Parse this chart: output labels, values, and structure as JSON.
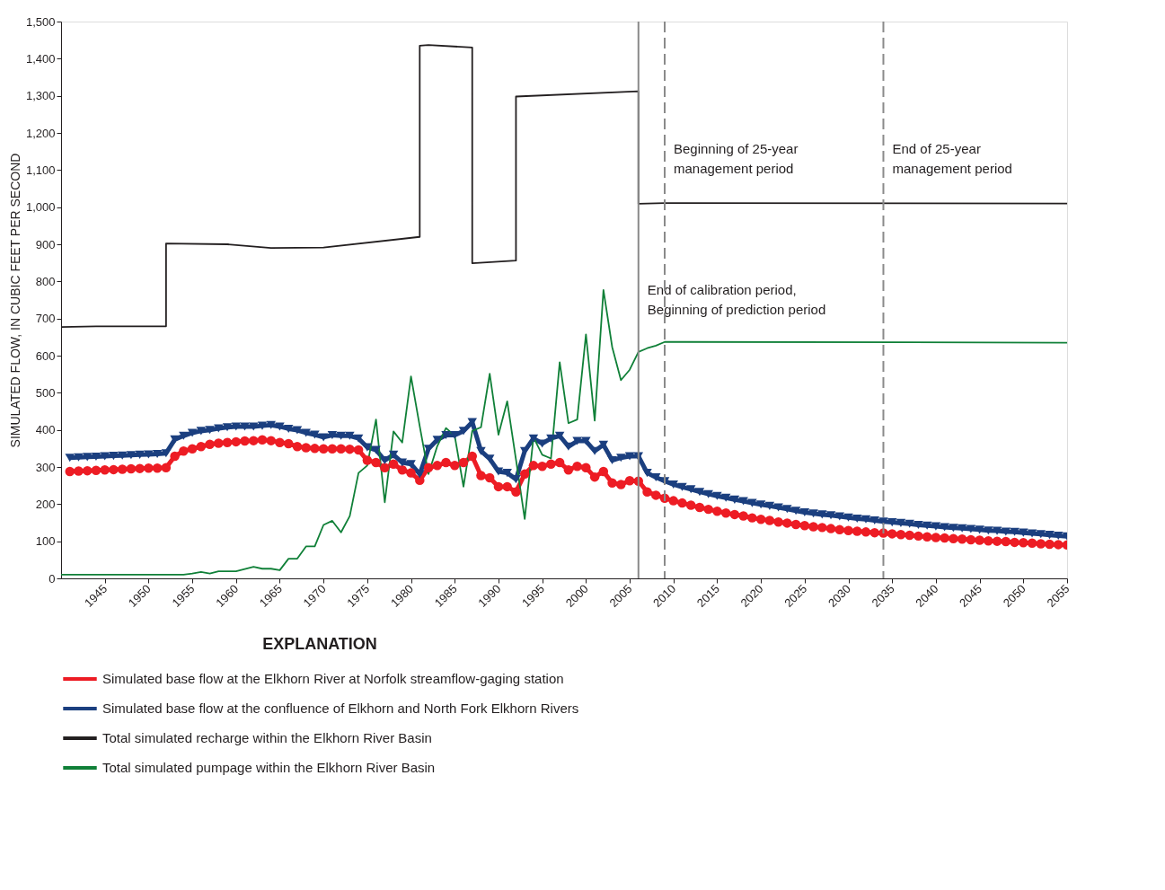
{
  "chart_data": {
    "type": "line",
    "ylabel": "SIMULATED FLOW, IN CUBIC FEET PER SECOND",
    "legend_title": "EXPLANATION",
    "legend": "bottom",
    "xlim": [
      1940,
      2055
    ],
    "xticks": [
      1945,
      1950,
      1955,
      1960,
      1965,
      1970,
      1975,
      1980,
      1985,
      1990,
      1995,
      2000,
      2005,
      2010,
      2015,
      2020,
      2025,
      2030,
      2035,
      2040,
      2045,
      2050,
      2055
    ],
    "ylim": [
      0,
      1500
    ],
    "yticks": [
      0,
      100,
      200,
      300,
      400,
      500,
      600,
      700,
      800,
      900,
      {
        "value": 1000,
        "label": "1,000"
      },
      {
        "value": 1100,
        "label": "1,100"
      },
      {
        "value": 1200,
        "label": "1,200"
      },
      {
        "value": 1300,
        "label": "1,300"
      },
      {
        "value": 1400,
        "label": "1,400"
      },
      {
        "value": 1500,
        "label": "1,500"
      }
    ],
    "x": [
      1941,
      1942,
      1943,
      1944,
      1945,
      1946,
      1947,
      1948,
      1949,
      1950,
      1951,
      1952,
      1953,
      1954,
      1955,
      1956,
      1957,
      1958,
      1959,
      1960,
      1961,
      1962,
      1963,
      1964,
      1965,
      1966,
      1967,
      1968,
      1969,
      1970,
      1971,
      1972,
      1973,
      1974,
      1975,
      1976,
      1977,
      1978,
      1979,
      1980,
      1981,
      1982,
      1983,
      1984,
      1985,
      1986,
      1987,
      1988,
      1989,
      1990,
      1991,
      1992,
      1993,
      1994,
      1995,
      1996,
      1997,
      1998,
      1999,
      2000,
      2001,
      2002,
      2003,
      2004,
      2005,
      2006,
      2007,
      2008,
      2009,
      2010,
      2011,
      2012,
      2013,
      2014,
      2015,
      2016,
      2017,
      2018,
      2019,
      2020,
      2021,
      2022,
      2023,
      2024,
      2025,
      2026,
      2027,
      2028,
      2029,
      2030,
      2031,
      2032,
      2033,
      2034,
      2035,
      2036,
      2037,
      2038,
      2039,
      2040,
      2041,
      2042,
      2043,
      2044,
      2045,
      2046,
      2047,
      2048,
      2049,
      2050,
      2051,
      2052,
      2053,
      2054,
      2055
    ],
    "series": [
      {
        "name": "Simulated base flow at the Elkhorn River at Norfolk streamflow-gaging station",
        "color": "#ed1c24",
        "marker": "circle",
        "values": [
          288,
          289,
          290,
          291,
          292,
          293,
          294,
          295,
          296,
          297,
          297,
          298,
          329,
          343,
          349,
          355,
          361,
          364,
          366,
          368,
          370,
          371,
          373,
          371,
          366,
          363,
          355,
          352,
          350,
          349,
          349,
          349,
          348,
          346,
          318,
          312,
          298,
          308,
          292,
          284,
          264,
          298,
          304,
          312,
          304,
          312,
          329,
          277,
          271,
          247,
          247,
          233,
          281,
          304,
          302,
          308,
          312,
          292,
          302,
          298,
          273,
          288,
          257,
          253,
          263,
          262,
          233,
          224,
          216,
          209,
          203,
          197,
          191,
          186,
          181,
          176,
          172,
          168,
          163,
          159,
          156,
          152,
          149,
          145,
          142,
          139,
          137,
          134,
          131,
          129,
          127,
          125,
          123,
          122,
          120,
          118,
          116,
          114,
          112,
          110,
          109,
          107,
          106,
          104,
          103,
          101,
          100,
          99,
          97,
          96,
          95,
          93,
          92,
          91,
          90
        ]
      },
      {
        "name": "Simulated base flow at the confluence of Elkhorn and North Fork Elkhorn Rivers",
        "color": "#1b3f7f",
        "marker": "triangle",
        "values": [
          325,
          326,
          327,
          328,
          329,
          330,
          331,
          332,
          333,
          334,
          335,
          337,
          374,
          384,
          392,
          397,
          400,
          404,
          407,
          409,
          409,
          409,
          411,
          413,
          409,
          403,
          399,
          392,
          387,
          380,
          386,
          384,
          384,
          377,
          353,
          346,
          318,
          333,
          312,
          308,
          281,
          349,
          373,
          386,
          386,
          397,
          421,
          343,
          322,
          288,
          284,
          267,
          343,
          377,
          363,
          377,
          384,
          355,
          370,
          370,
          343,
          360,
          318,
          325,
          329,
          329,
          284,
          272,
          262,
          253,
          246,
          240,
          233,
          227,
          222,
          217,
          212,
          208,
          203,
          199,
          195,
          191,
          187,
          182,
          178,
          175,
          172,
          170,
          167,
          164,
          161,
          159,
          156,
          153,
          151,
          149,
          147,
          144,
          142,
          140,
          138,
          136,
          135,
          133,
          131,
          129,
          128,
          126,
          125,
          123,
          121,
          119,
          117,
          115,
          113
        ]
      },
      {
        "name": "Total simulated recharge within the Elkhorn River Basin",
        "color": "#231f20",
        "marker": "none",
        "x": [
          1940,
          1944,
          1952,
          1952,
          1959,
          1964,
          1970,
          1981,
          1981,
          1982,
          1987,
          1987,
          1992,
          1992,
          2006,
          2006,
          2009,
          2055
        ],
        "values": [
          677,
          679,
          679,
          902,
          900,
          890,
          891,
          920,
          1435,
          1437,
          1430,
          849,
          856,
          1298,
          1312,
          1009,
          1011,
          1010
        ]
      },
      {
        "name": "Total simulated pumpage within the Elkhorn River Basin",
        "color": "#108038",
        "marker": "none",
        "x": [
          1940,
          1954,
          1955,
          1956,
          1957,
          1958,
          1959,
          1960,
          1961,
          1962,
          1963,
          1964,
          1965,
          1966,
          1967,
          1968,
          1969,
          1970,
          1971,
          1972,
          1973,
          1974,
          1975,
          1976,
          1977,
          1978,
          1979,
          1980,
          1981,
          1982,
          1983,
          1984,
          1985,
          1986,
          1987,
          1988,
          1989,
          1990,
          1991,
          1992,
          1993,
          1994,
          1995,
          1996,
          1997,
          1998,
          1999,
          2000,
          2001,
          2002,
          2003,
          2004,
          2005,
          2006,
          2007,
          2008,
          2009,
          2055
        ],
        "values": [
          10,
          10,
          13,
          17,
          13,
          19,
          19,
          19,
          25,
          31,
          26,
          26,
          22,
          53,
          53,
          86,
          86,
          144,
          155,
          124,
          168,
          284,
          304,
          428,
          205,
          396,
          366,
          544,
          410,
          281,
          356,
          405,
          384,
          247,
          397,
          407,
          551,
          387,
          477,
          320,
          160,
          380,
          333,
          323,
          582,
          418,
          428,
          657,
          425,
          777,
          623,
          534,
          562,
          610,
          620,
          627,
          637,
          635
        ]
      }
    ],
    "ref_lines": [
      {
        "axis": "x",
        "value": 2006,
        "label": "End of  calibration period,\nBeginning of prediction period",
        "color": "#8a8a8a",
        "line_style": "solid"
      },
      {
        "axis": "x",
        "value": 2009,
        "label": "Beginning of 25-year\nmanagement period",
        "color": "#8a8a8a",
        "line_style": "dashed"
      },
      {
        "axis": "x",
        "value": 2034,
        "label": "End of 25-year\nmanagement period",
        "color": "#8a8a8a",
        "line_style": "dashed"
      }
    ]
  }
}
